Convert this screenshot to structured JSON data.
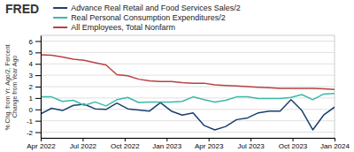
{
  "chart_data": {
    "type": "line",
    "title": "FRED",
    "ylabel": "% Chg. from Yr. Ago/2, Percent Change from Year Ago",
    "x": [
      0,
      1,
      2,
      3,
      4,
      5,
      6,
      7,
      8,
      9,
      10,
      11,
      12,
      13,
      14,
      15,
      16,
      17,
      18,
      19,
      20,
      21,
      22,
      23,
      24,
      25,
      26,
      27
    ],
    "xlim": [
      0,
      27
    ],
    "xticks": [
      {
        "value": 0,
        "label": "Apr 2022"
      },
      {
        "value": 3.857142857142857,
        "label": "Jul 2022"
      },
      {
        "value": 7.714285714285714,
        "label": "Oct 2022"
      },
      {
        "value": 11.571428571428571,
        "label": "Jan 2023"
      },
      {
        "value": 15.428571428571429,
        "label": "Apr 2023"
      },
      {
        "value": 19.285714285714285,
        "label": "Jul 2023"
      },
      {
        "value": 23.142857142857142,
        "label": "Oct 2023"
      },
      {
        "value": 27,
        "label": "Jan 2024"
      }
    ],
    "ylim": [
      -2.5,
      6.5
    ],
    "yticks": [
      -2,
      -1,
      0,
      1,
      2,
      3,
      4,
      5,
      6
    ],
    "grid": true,
    "legend": "top-left",
    "series": [
      {
        "name": "Advance Real Retail and Food Services Sales/2",
        "color": "#1a3f6f",
        "values": [
          -0.4,
          0.1,
          -0.1,
          0.35,
          0.45,
          0.05,
          0.0,
          0.55,
          0.05,
          -0.05,
          -0.15,
          0.6,
          -0.15,
          -0.5,
          -0.3,
          -1.4,
          -1.8,
          -1.5,
          -0.9,
          -0.75,
          -0.3,
          -0.15,
          -0.15,
          0.85,
          -0.1,
          -1.8,
          -0.5,
          0.2
        ]
      },
      {
        "name": "Real Personal Consumption Expenditures/2",
        "color": "#3cb8a9",
        "values": [
          1.1,
          1.1,
          0.7,
          0.8,
          0.35,
          0.65,
          0.3,
          0.85,
          1.05,
          0.6,
          0.65,
          0.65,
          0.65,
          0.7,
          1.1,
          0.85,
          0.65,
          0.8,
          1.1,
          1.1,
          0.95,
          0.95,
          0.95,
          1.05,
          1.3,
          0.85,
          1.35,
          1.4
        ]
      },
      {
        "name": "All Employees, Total Nonfarm",
        "color": "#b94040",
        "values": [
          4.8,
          4.75,
          4.6,
          4.4,
          4.3,
          4.1,
          3.9,
          3.05,
          2.95,
          2.65,
          2.5,
          2.45,
          2.45,
          2.35,
          2.3,
          2.3,
          2.15,
          2.1,
          2.05,
          2.0,
          1.95,
          1.9,
          1.85,
          1.85,
          1.85,
          1.85,
          1.8,
          1.75
        ]
      }
    ]
  }
}
